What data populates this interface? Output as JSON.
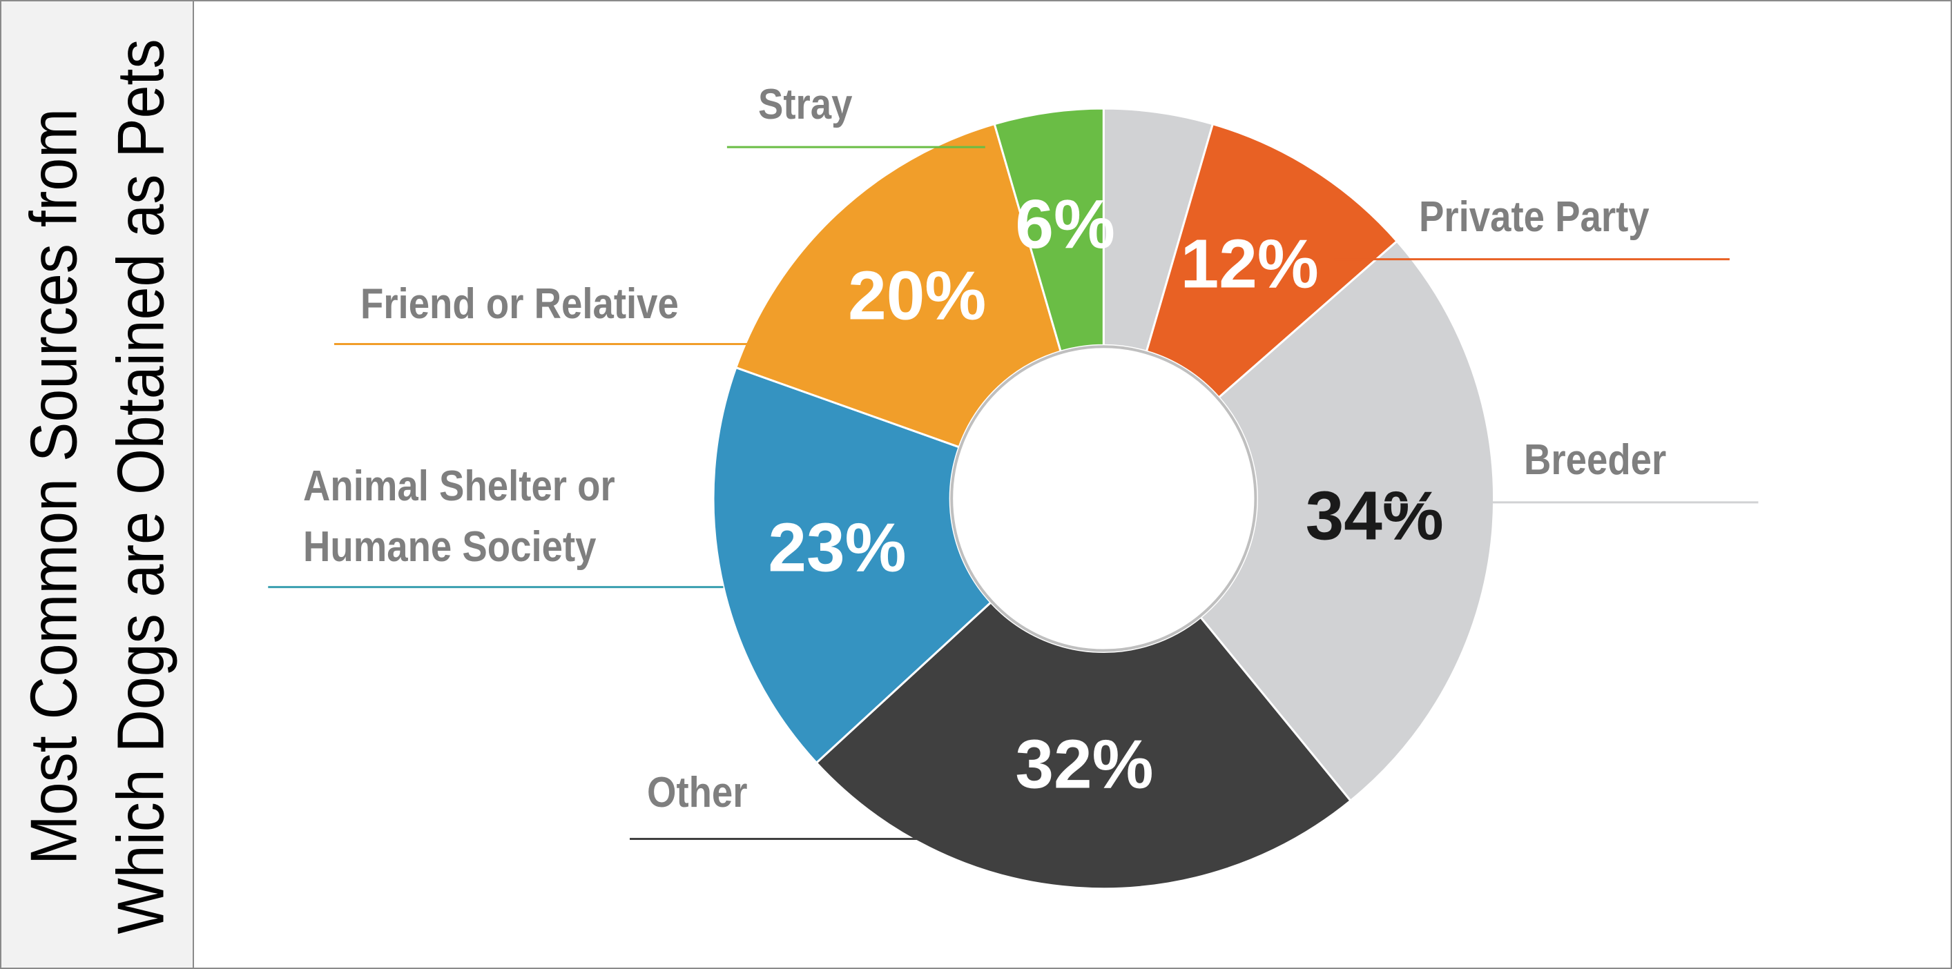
{
  "chart_data": {
    "type": "donut",
    "title": [
      "Most Common Sources from",
      "Which Dogs are Obtained as Pets"
    ],
    "categories": [
      null,
      "Private Party",
      "Breeder",
      "Other",
      "Animal Shelter or Humane Society",
      "Friend or Relative",
      "Stray"
    ],
    "values": [
      6,
      12,
      34,
      32,
      23,
      20,
      6
    ],
    "value_labels": [
      null,
      "12%",
      "34%",
      "32%",
      "23%",
      "20%",
      "6%"
    ],
    "colors": [
      "#d1d2d4",
      "#e86124",
      "#d1d2d4",
      "#404040",
      "#3593c1",
      "#f19e2a",
      "#6abd45"
    ],
    "value_label_colors": [
      "#ffffff",
      "#ffffff",
      "#1a1a1a",
      "#ffffff",
      "#ffffff",
      "#ffffff",
      "#ffffff"
    ]
  }
}
